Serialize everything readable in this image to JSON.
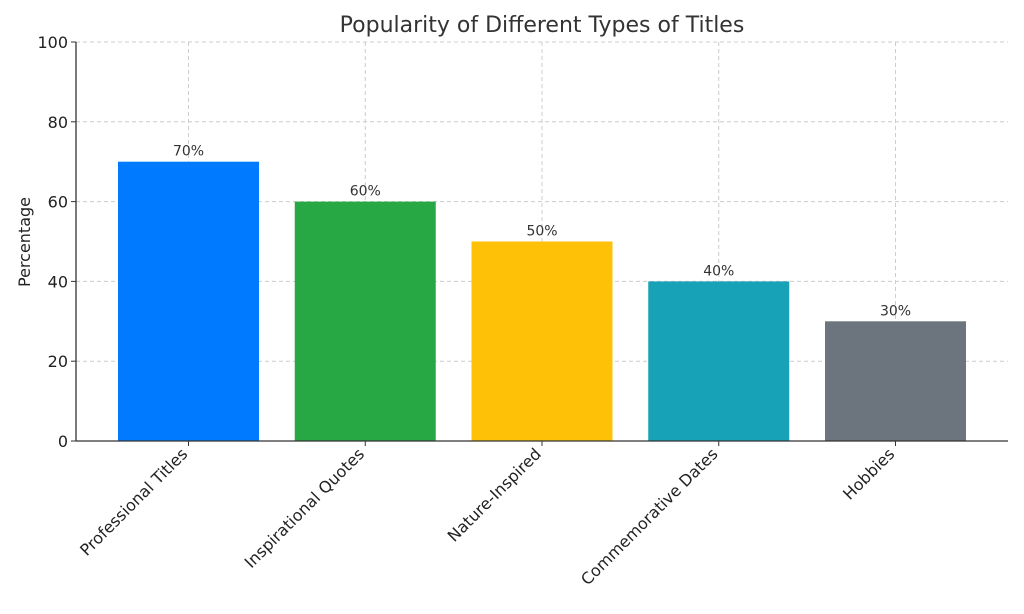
{
  "chart_data": {
    "type": "bar",
    "title": "Popularity of Different Types of Titles",
    "xlabel": "",
    "ylabel": "Percentage",
    "ylim": [
      0,
      100
    ],
    "yticks": [
      0,
      20,
      40,
      60,
      80,
      100
    ],
    "grid": true,
    "categories": [
      "Professional Titles",
      "Inspirational Quotes",
      "Nature-Inspired",
      "Commemorative Dates",
      "Hobbies"
    ],
    "values": [
      70,
      60,
      50,
      40,
      30
    ],
    "data_labels": [
      "70%",
      "60%",
      "50%",
      "40%",
      "30%"
    ],
    "colors": [
      "#007bff",
      "#28a745",
      "#ffc107",
      "#17a2b8",
      "#6c757d"
    ]
  }
}
